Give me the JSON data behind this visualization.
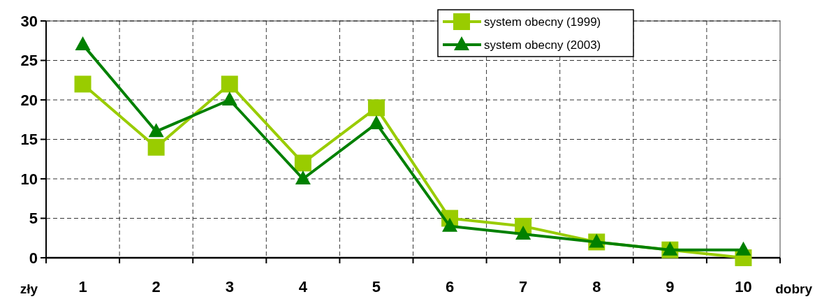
{
  "chart_data": {
    "type": "line",
    "categories": [
      "1",
      "2",
      "3",
      "4",
      "5",
      "6",
      "7",
      "8",
      "9",
      "10"
    ],
    "series": [
      {
        "name": "system obecny (1999)",
        "color": "#99cc00",
        "marker": "square",
        "values": [
          22,
          14,
          22,
          12,
          19,
          5,
          4,
          2,
          1,
          0
        ]
      },
      {
        "name": "system obecny (2003)",
        "color": "#008000",
        "marker": "triangle",
        "values": [
          27,
          16,
          20,
          10,
          17,
          4,
          3,
          2,
          1,
          1
        ]
      }
    ],
    "ylim": [
      0,
      30
    ],
    "yticks": [
      0,
      5,
      10,
      15,
      20,
      25,
      30
    ],
    "grid": true,
    "legend": "top right",
    "line_style": "solid",
    "annotations": [
      "zły",
      "dobry"
    ]
  }
}
